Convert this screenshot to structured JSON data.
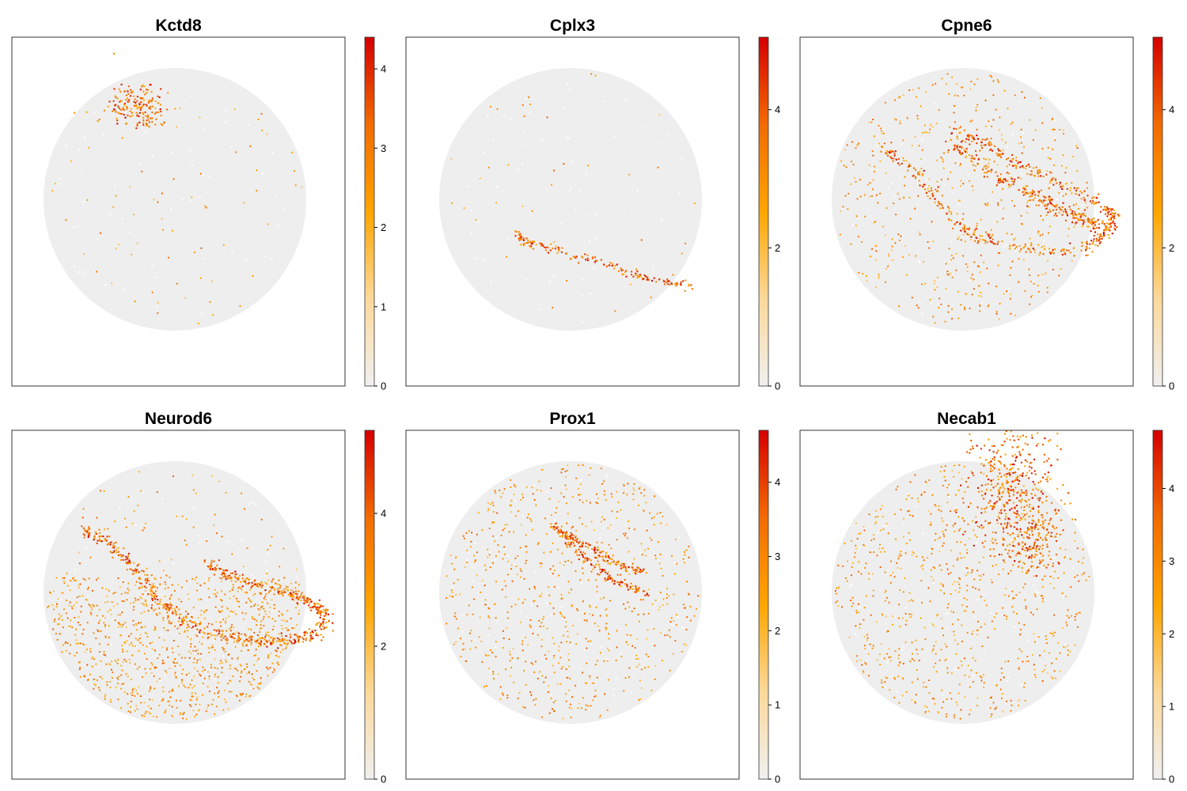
{
  "figure": {
    "colormap": [
      "#f0f0f0",
      "#fcd99a",
      "#ffa500",
      "#f26b00",
      "#d40000"
    ],
    "background_color": "#eeeeee"
  },
  "chart_data": [
    {
      "type": "scatter",
      "title": "Kctd8",
      "colorbar": {
        "min": 0,
        "max": 4.4,
        "ticks": [
          0,
          1,
          2,
          3,
          4
        ]
      },
      "tissue": {
        "shape": "circle"
      },
      "expression_pattern": "cluster-upper-left"
    },
    {
      "type": "scatter",
      "title": "Cplx3",
      "colorbar": {
        "min": 0,
        "max": 5.05,
        "ticks": [
          0,
          2,
          4
        ]
      },
      "tissue": {
        "shape": "circle"
      },
      "expression_pattern": "thin-band"
    },
    {
      "type": "scatter",
      "title": "Cpne6",
      "colorbar": {
        "min": 0,
        "max": 5.05,
        "ticks": [
          0,
          2,
          4
        ]
      },
      "tissue": {
        "shape": "circle"
      },
      "expression_pattern": "hippocampal-loop"
    },
    {
      "type": "scatter",
      "title": "Neurod6",
      "colorbar": {
        "min": 0,
        "max": 5.25,
        "ticks": [
          0,
          2,
          4
        ]
      },
      "tissue": {
        "shape": "circle"
      },
      "expression_pattern": "hippocampal-loop-cortex"
    },
    {
      "type": "scatter",
      "title": "Prox1",
      "colorbar": {
        "min": 0,
        "max": 4.7,
        "ticks": [
          0,
          1,
          2,
          3,
          4
        ]
      },
      "tissue": {
        "shape": "circle"
      },
      "expression_pattern": "dentate-gyrus"
    },
    {
      "type": "scatter",
      "title": "Necab1",
      "colorbar": {
        "min": 0,
        "max": 4.8,
        "ticks": [
          0,
          1,
          2,
          3,
          4
        ]
      },
      "tissue": {
        "shape": "circle"
      },
      "expression_pattern": "upper-cluster-scatter"
    }
  ]
}
